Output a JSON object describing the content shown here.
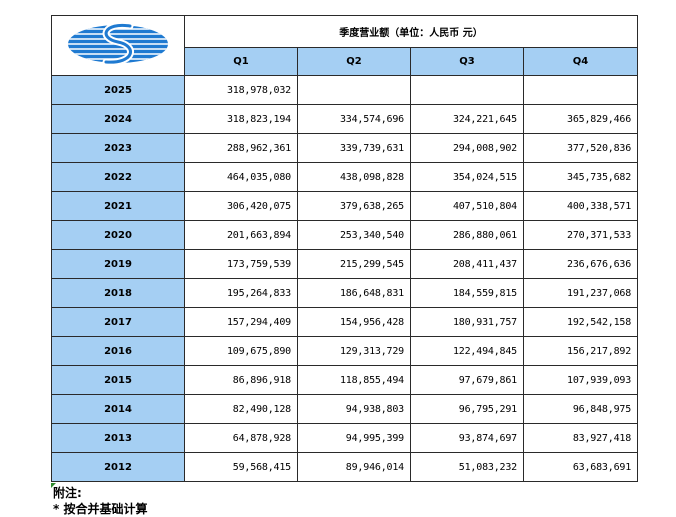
{
  "table": {
    "title": "季度营业额（单位：人民币 元）",
    "quarters": [
      "Q1",
      "Q2",
      "Q3",
      "Q4"
    ],
    "rows": [
      {
        "year": "2025",
        "q": [
          "318,978,032",
          "",
          "",
          ""
        ]
      },
      {
        "year": "2024",
        "q": [
          "318,823,194",
          "334,574,696",
          "324,221,645",
          "365,829,466"
        ]
      },
      {
        "year": "2023",
        "q": [
          "288,962,361",
          "339,739,631",
          "294,008,902",
          "377,520,836"
        ]
      },
      {
        "year": "2022",
        "q": [
          "464,035,080",
          "438,098,828",
          "354,024,515",
          "345,735,682"
        ]
      },
      {
        "year": "2021",
        "q": [
          "306,420,075",
          "379,638,265",
          "407,510,804",
          "400,338,571"
        ]
      },
      {
        "year": "2020",
        "q": [
          "201,663,894",
          "253,340,540",
          "286,880,061",
          "270,371,533"
        ]
      },
      {
        "year": "2019",
        "q": [
          "173,759,539",
          "215,299,545",
          "208,411,437",
          "236,676,636"
        ]
      },
      {
        "year": "2018",
        "q": [
          "195,264,833",
          "186,648,831",
          "184,559,815",
          "191,237,068"
        ]
      },
      {
        "year": "2017",
        "q": [
          "157,294,409",
          "154,956,428",
          "180,931,757",
          "192,542,158"
        ]
      },
      {
        "year": "2016",
        "q": [
          "109,675,890",
          "129,313,729",
          "122,494,845",
          "156,217,892"
        ]
      },
      {
        "year": "2015",
        "q": [
          "86,896,918",
          "118,855,494",
          "97,679,861",
          "107,939,093"
        ]
      },
      {
        "year": "2014",
        "q": [
          "82,490,128",
          "94,938,803",
          "96,795,291",
          "96,848,975"
        ]
      },
      {
        "year": "2013",
        "q": [
          "64,878,928",
          "94,995,399",
          "93,874,697",
          "83,927,418"
        ]
      },
      {
        "year": "2012",
        "q": [
          "59,568,415",
          "89,946,014",
          "51,083,232",
          "63,683,691"
        ]
      }
    ]
  },
  "notes": {
    "label": "附注:",
    "line1": "* 按合并基础计算"
  },
  "colors": {
    "header_fill": "#a5cff3",
    "logo_blue": "#1f7ad1",
    "border": "#2a2a2a"
  },
  "logo": {
    "icon": "company-s-logo-icon"
  }
}
